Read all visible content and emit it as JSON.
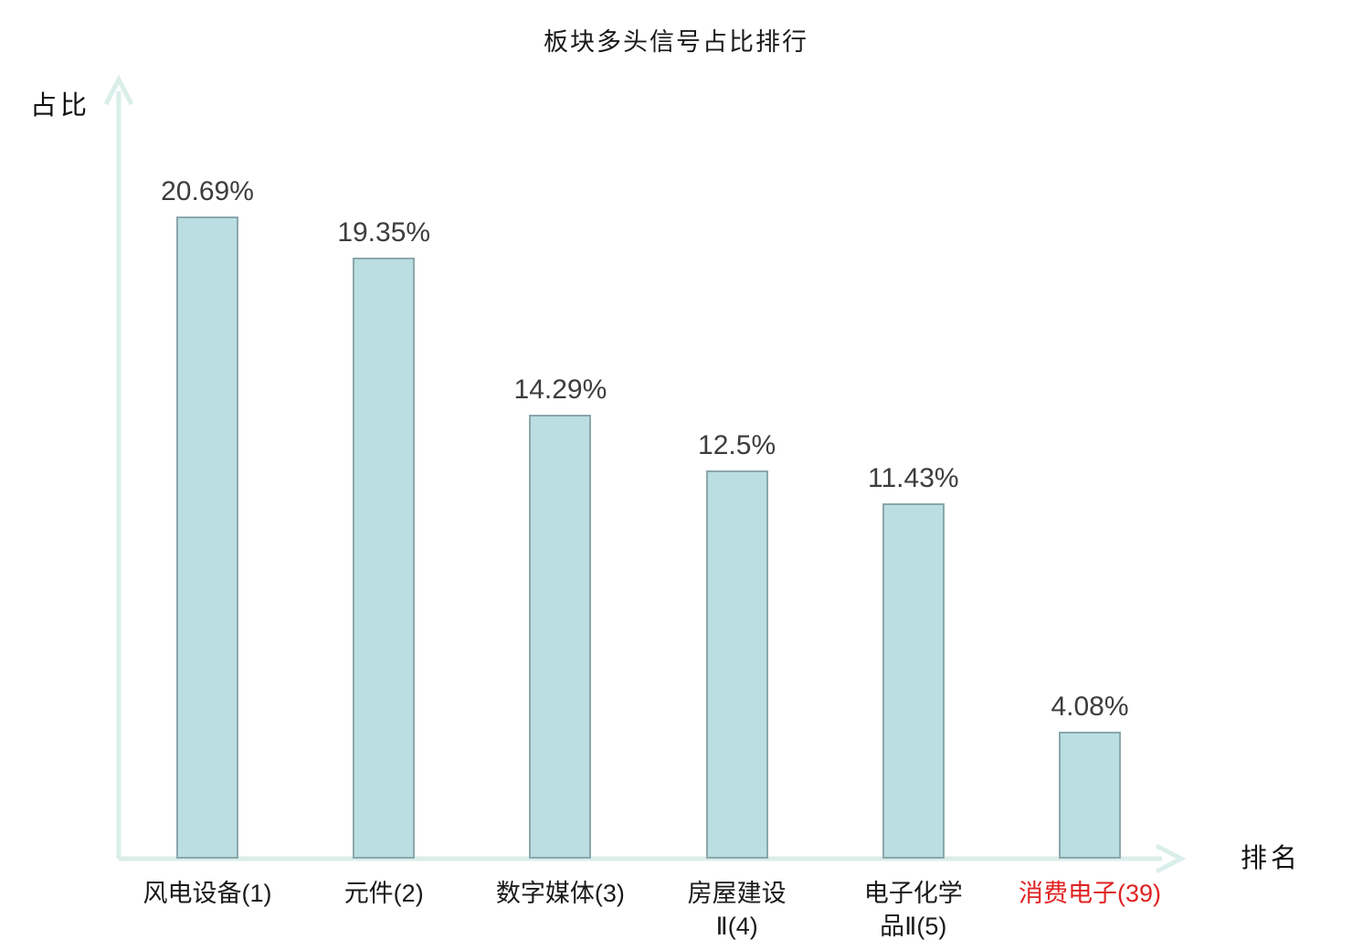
{
  "title": "板块多头信号占比排行",
  "axes": {
    "y_label": "占比",
    "x_label": "排名"
  },
  "colors": {
    "bar_fill": "#badee2",
    "bar_border": "#8ba7ab",
    "axis": "#daeeea",
    "title_text": "#1a1a1a",
    "value_text": "#3d3d3d",
    "category_text": "#1a1a1a",
    "highlight_text": "#e02222"
  },
  "chart_data": {
    "type": "bar",
    "title": "板块多头信号占比排行",
    "xlabel": "排名",
    "ylabel": "占比",
    "categories": [
      "风电设备(1)",
      "元件(2)",
      "数字媒体(3)",
      "房屋建设Ⅱ(4)",
      "电子化学品Ⅱ(5)",
      "消费电子(39)"
    ],
    "category_lines": [
      [
        "风电设备(1)"
      ],
      [
        "元件(2)"
      ],
      [
        "数字媒体(3)"
      ],
      [
        "房屋建设",
        "Ⅱ(4)"
      ],
      [
        "电子化学",
        "品Ⅱ(5)"
      ],
      [
        "消费电子(39)"
      ]
    ],
    "values": [
      20.69,
      19.35,
      14.29,
      12.5,
      11.43,
      4.08
    ],
    "value_labels": [
      "20.69%",
      "19.35%",
      "14.29%",
      "12.5%",
      "11.43%",
      "4.08%"
    ],
    "highlight_index": 5,
    "ylim": [
      0,
      25
    ],
    "grid": false,
    "legend": null
  }
}
